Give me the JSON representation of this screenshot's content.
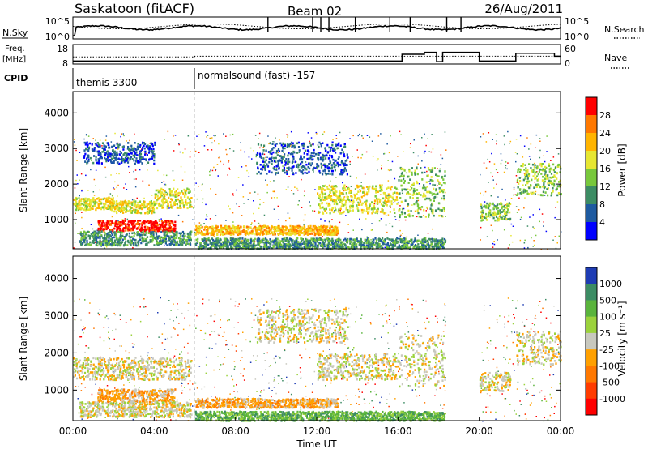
{
  "header": {
    "station": "Saskatoon (fitACF)",
    "beam": "Beam 02",
    "date": "26/Aug/2011"
  },
  "nsky_panel": {
    "label": "N.Sky",
    "left_ticks": [
      "10^5",
      "10^0"
    ],
    "right_ticks": [
      "10^5",
      "10^0"
    ],
    "right_label": "N.Search"
  },
  "freq_panel": {
    "label_line1": "Freq.",
    "label_line2": "[MHz]",
    "left_ticks": [
      "18",
      "8"
    ],
    "right_ticks": [
      "60",
      "0"
    ],
    "right_label": "Nave"
  },
  "cpid": {
    "label": "CPID",
    "segments": [
      {
        "start_hour": 0,
        "end_hour": 6,
        "text": "themis 3300"
      },
      {
        "start_hour": 6,
        "end_hour": 24,
        "text": "normalsound (fast) -157"
      }
    ]
  },
  "chart_data": [
    {
      "type": "heatmap",
      "panel": "power",
      "ylabel": "Slant Range [km]",
      "ylim": [
        180,
        4600
      ],
      "yticks": [
        1000,
        2000,
        3000,
        4000
      ],
      "xlim": [
        0,
        24
      ],
      "colorbar": {
        "label": "Power [dB]",
        "ticks": [
          "28",
          "24",
          "20",
          "16",
          "12",
          "8",
          "4"
        ],
        "colors": [
          "#ff0000",
          "#ff7800",
          "#ffb400",
          "#e6e632",
          "#78c83c",
          "#3c8c64",
          "#1e5aa0",
          "#0000ff"
        ]
      },
      "bands": [
        {
          "t0": 0.0,
          "t1": 2.0,
          "r0": 1300,
          "r1": 1650,
          "level": 3
        },
        {
          "t0": 2.0,
          "t1": 4.0,
          "r0": 1200,
          "r1": 1550,
          "level": 3
        },
        {
          "t0": 4.0,
          "t1": 5.8,
          "r0": 1350,
          "r1": 1900,
          "level": 3
        },
        {
          "t0": 1.2,
          "t1": 5.0,
          "r0": 700,
          "r1": 1000,
          "level": 0
        },
        {
          "t0": 0.3,
          "t1": 5.8,
          "r0": 300,
          "r1": 700,
          "level": 5
        },
        {
          "t0": 0.5,
          "t1": 4.0,
          "r0": 2600,
          "r1": 3200,
          "level": 6
        },
        {
          "t0": 6.0,
          "t1": 13.0,
          "r0": 600,
          "r1": 850,
          "level": 2
        },
        {
          "t0": 9.0,
          "t1": 13.5,
          "r0": 2300,
          "r1": 3200,
          "level": 6
        },
        {
          "t0": 12.0,
          "t1": 16.0,
          "r0": 1200,
          "r1": 2000,
          "level": 3
        },
        {
          "t0": 16.0,
          "t1": 18.3,
          "r0": 1100,
          "r1": 2500,
          "level": 4
        },
        {
          "t0": 20.0,
          "t1": 21.5,
          "r0": 1000,
          "r1": 1500,
          "level": 4
        },
        {
          "t0": 21.8,
          "t1": 24.0,
          "r0": 1700,
          "r1": 2600,
          "level": 4
        },
        {
          "t0": 6.0,
          "t1": 18.3,
          "r0": 200,
          "r1": 500,
          "level": 5
        }
      ]
    },
    {
      "type": "heatmap",
      "panel": "velocity",
      "ylabel": "Slant Range [km]",
      "ylim": [
        180,
        4600
      ],
      "yticks": [
        1000,
        2000,
        3000,
        4000
      ],
      "xlim": [
        0,
        24
      ],
      "xticks": [
        "00:00",
        "04:00",
        "08:00",
        "12:00",
        "16:00",
        "20:00",
        "00:00"
      ],
      "xlabel": "Time UT",
      "colorbar": {
        "label": "Velocity [m s⁻¹]",
        "ticks": [
          "1000",
          "500",
          "100",
          "25",
          "-25",
          "-100",
          "-500",
          "-1000"
        ],
        "colors": [
          "#1e3cb4",
          "#3c8c64",
          "#5ab43c",
          "#9bd23c",
          "#c8c8be",
          "#ffa000",
          "#ff7800",
          "#ff3c00",
          "#ff0000"
        ]
      },
      "bands": [
        {
          "t0": 0.0,
          "t1": 5.8,
          "r0": 1300,
          "r1": 1900,
          "level": 4
        },
        {
          "t0": 1.2,
          "t1": 5.0,
          "r0": 700,
          "r1": 1050,
          "level": 5
        },
        {
          "t0": 0.3,
          "t1": 5.8,
          "r0": 300,
          "r1": 700,
          "level": 4
        },
        {
          "t0": 6.0,
          "t1": 13.0,
          "r0": 550,
          "r1": 800,
          "level": 5
        },
        {
          "t0": 9.0,
          "t1": 13.5,
          "r0": 2300,
          "r1": 3200,
          "level": 4
        },
        {
          "t0": 12.0,
          "t1": 16.0,
          "r0": 1300,
          "r1": 2000,
          "level": 4
        },
        {
          "t0": 16.0,
          "t1": 18.3,
          "r0": 1100,
          "r1": 2500,
          "level": 4
        },
        {
          "t0": 20.0,
          "t1": 21.5,
          "r0": 1000,
          "r1": 1500,
          "level": 4
        },
        {
          "t0": 21.8,
          "t1": 24.0,
          "r0": 1700,
          "r1": 2600,
          "level": 4
        },
        {
          "t0": 6.0,
          "t1": 18.3,
          "r0": 200,
          "r1": 450,
          "level": 2
        }
      ]
    }
  ]
}
